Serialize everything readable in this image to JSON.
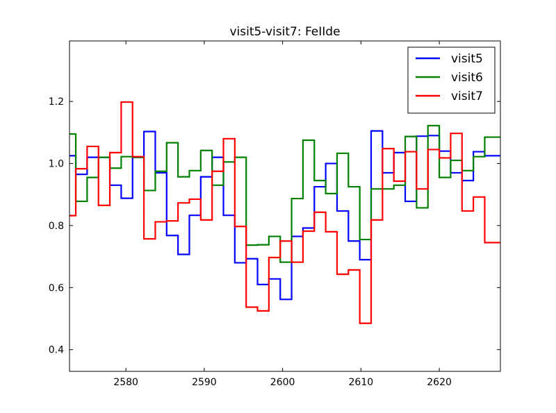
{
  "chart_data": {
    "type": "line",
    "title": "visit5-visit7: FeIIde",
    "xlabel": "",
    "ylabel": "",
    "xlim": [
      2572.8,
      2627.8
    ],
    "ylim": [
      0.33,
      1.395
    ],
    "xticks": [
      2580,
      2590,
      2600,
      2610,
      2620
    ],
    "xtick_labels": [
      "2580",
      "2590",
      "2600",
      "2610",
      "2620"
    ],
    "yticks": [
      0.4,
      0.6,
      0.8,
      1.0,
      1.2
    ],
    "ytick_labels": [
      "0.4",
      "0.6",
      "0.8",
      "1.0",
      "1.2"
    ],
    "grid": false,
    "legend_position": "top-right",
    "step_style": "steps-mid",
    "x": [
      2572.9,
      2574.3,
      2575.8,
      2577.2,
      2578.7,
      2580.1,
      2581.6,
      2583.0,
      2584.5,
      2585.9,
      2587.4,
      2588.8,
      2590.3,
      2591.7,
      2593.2,
      2594.6,
      2596.1,
      2597.5,
      2599.0,
      2600.4,
      2601.9,
      2603.3,
      2604.8,
      2606.2,
      2607.7,
      2609.1,
      2610.6,
      2612.0,
      2613.5,
      2614.9,
      2616.4,
      2617.8,
      2619.3,
      2620.7,
      2622.2,
      2623.6,
      2625.1,
      2626.5,
      2628.0
    ],
    "series": [
      {
        "name": "visit5",
        "color": "#0000ff",
        "values": [
          1.025,
          0.965,
          1.02,
          1.02,
          0.93,
          0.888,
          1.02,
          1.103,
          0.97,
          0.768,
          0.707,
          0.833,
          0.957,
          1.02,
          0.833,
          0.68,
          0.693,
          0.61,
          0.628,
          0.562,
          0.765,
          0.792,
          0.925,
          1.0,
          0.847,
          0.75,
          0.69,
          1.105,
          0.97,
          1.035,
          0.878,
          1.088,
          1.09,
          1.04,
          0.97,
          0.945,
          1.038,
          1.025,
          1.025
        ]
      },
      {
        "name": "visit6",
        "color": "#008000",
        "values": [
          1.095,
          0.878,
          0.955,
          1.02,
          0.985,
          1.022,
          1.02,
          0.913,
          0.975,
          1.067,
          0.957,
          0.977,
          1.042,
          0.93,
          1.005,
          1.02,
          0.737,
          0.738,
          0.765,
          0.682,
          0.887,
          1.075,
          0.945,
          0.903,
          1.033,
          0.925,
          0.755,
          0.918,
          0.918,
          0.93,
          1.087,
          0.857,
          1.122,
          0.955,
          1.01,
          0.977,
          1.022,
          1.085,
          1.085
        ]
      },
      {
        "name": "visit7",
        "color": "#ff0000",
        "values": [
          0.832,
          0.983,
          1.055,
          0.865,
          1.035,
          1.198,
          1.022,
          0.757,
          0.812,
          0.815,
          0.873,
          0.885,
          0.818,
          0.975,
          1.08,
          0.797,
          0.537,
          0.525,
          0.697,
          0.75,
          0.682,
          0.782,
          0.843,
          0.78,
          0.643,
          0.657,
          0.485,
          0.818,
          1.048,
          0.943,
          1.038,
          0.918,
          1.045,
          1.018,
          1.097,
          0.847,
          0.892,
          0.745,
          0.745
        ]
      }
    ]
  }
}
